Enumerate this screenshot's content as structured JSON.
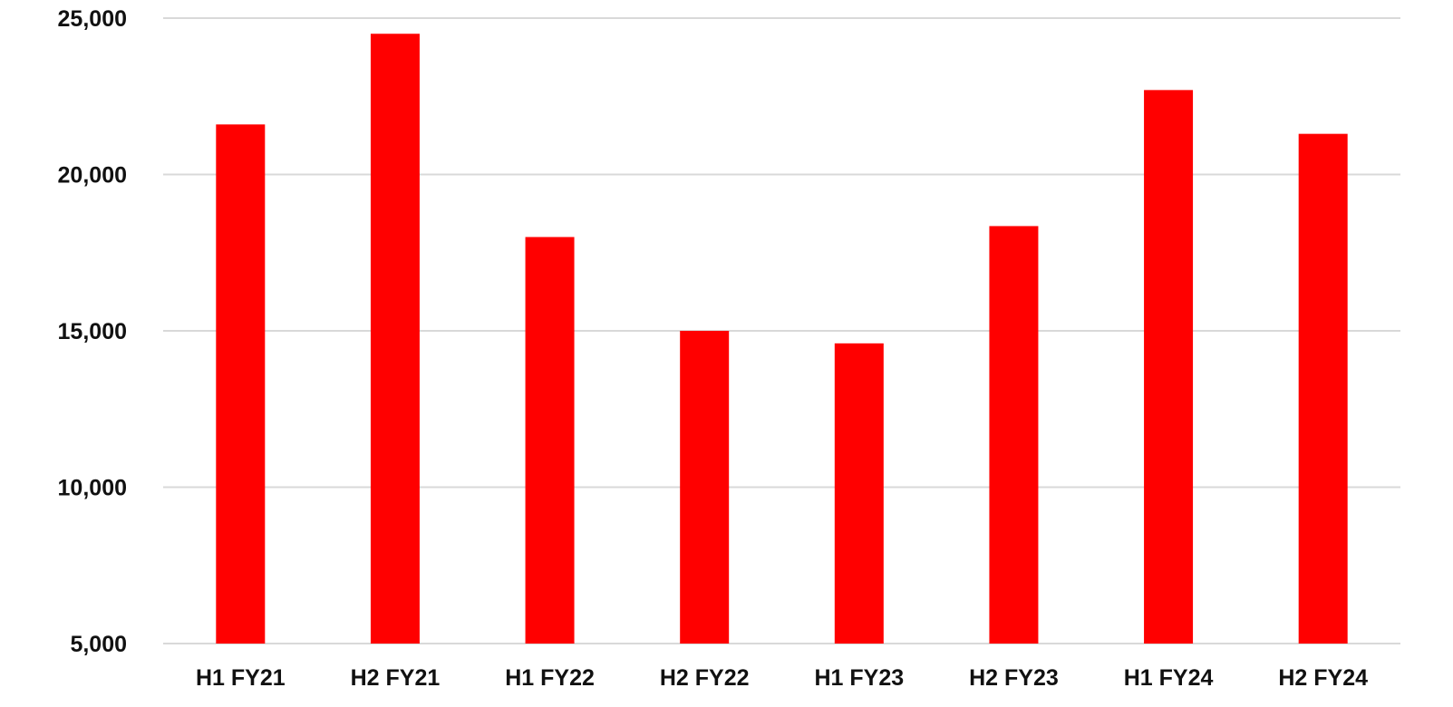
{
  "chart_data": {
    "type": "bar",
    "categories": [
      "H1 FY21",
      "H2 FY21",
      "H1 FY22",
      "H2 FY22",
      "H1 FY23",
      "H2 FY23",
      "H1 FY24",
      "H2 FY24"
    ],
    "series": [
      {
        "values": [
          21600,
          24500,
          18000,
          15000,
          14600,
          18350,
          22700,
          21300
        ]
      }
    ],
    "title": "",
    "xlabel": "",
    "ylabel": "",
    "ylim": [
      5000,
      25000
    ],
    "yticks": [
      "5,000",
      "10,000",
      "15,000",
      "20,000",
      "25,000"
    ],
    "ytick_values": [
      5000,
      10000,
      15000,
      20000,
      25000
    ],
    "grid": true,
    "legend": "none",
    "bar_color": "#ff0000"
  }
}
